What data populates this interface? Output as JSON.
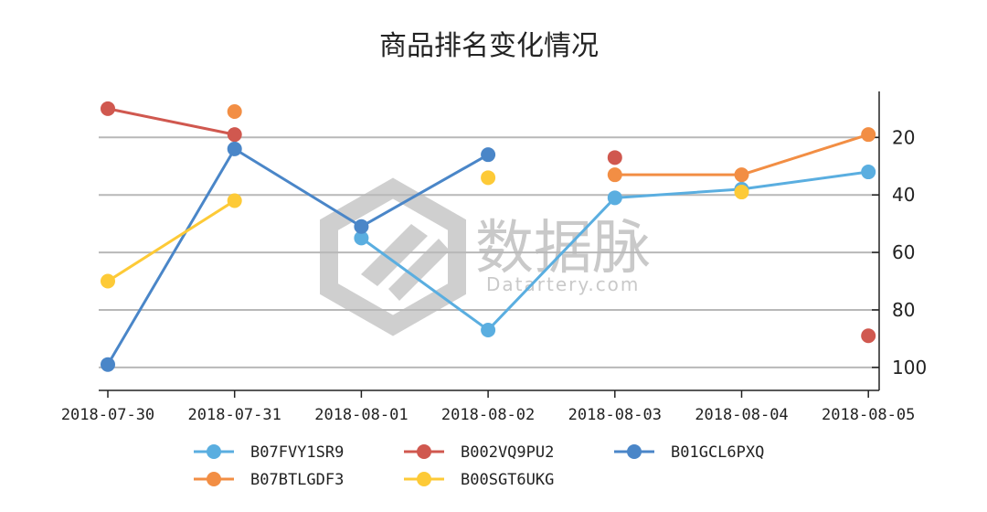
{
  "watermark": {
    "text": "数据脉",
    "subtext": "Datartery.com"
  },
  "chart_data": {
    "type": "line",
    "title": "商品排名变化情况",
    "xlabel": "",
    "ylabel": "",
    "categories": [
      "2018-07-30",
      "2018-07-31",
      "2018-08-01",
      "2018-08-02",
      "2018-08-03",
      "2018-08-04",
      "2018-08-05"
    ],
    "y_ticks": [
      20,
      40,
      60,
      80,
      100
    ],
    "ylim": [
      108,
      4
    ],
    "y_axis_inverted": true,
    "y_axis_side": "right",
    "grid": "horizontal",
    "legend_position": "bottom",
    "series": [
      {
        "name": "B07FVY1SR9",
        "color": "#5aaee0",
        "values": [
          null,
          null,
          55,
          87,
          41,
          38,
          32
        ]
      },
      {
        "name": "B002VQ9PU2",
        "color": "#d0584f",
        "values": [
          10,
          19,
          null,
          null,
          27,
          null,
          89
        ]
      },
      {
        "name": "B01GCL6PXQ",
        "color": "#4a86c8",
        "values": [
          99,
          24,
          51,
          26,
          null,
          null,
          null
        ]
      },
      {
        "name": "B07BTLGDF3",
        "color": "#f28e44",
        "values": [
          null,
          11,
          null,
          null,
          33,
          33,
          19
        ]
      },
      {
        "name": "B00SGT6UKG",
        "color": "#fdca37",
        "values": [
          70,
          42,
          null,
          34,
          null,
          39,
          null
        ]
      }
    ]
  }
}
